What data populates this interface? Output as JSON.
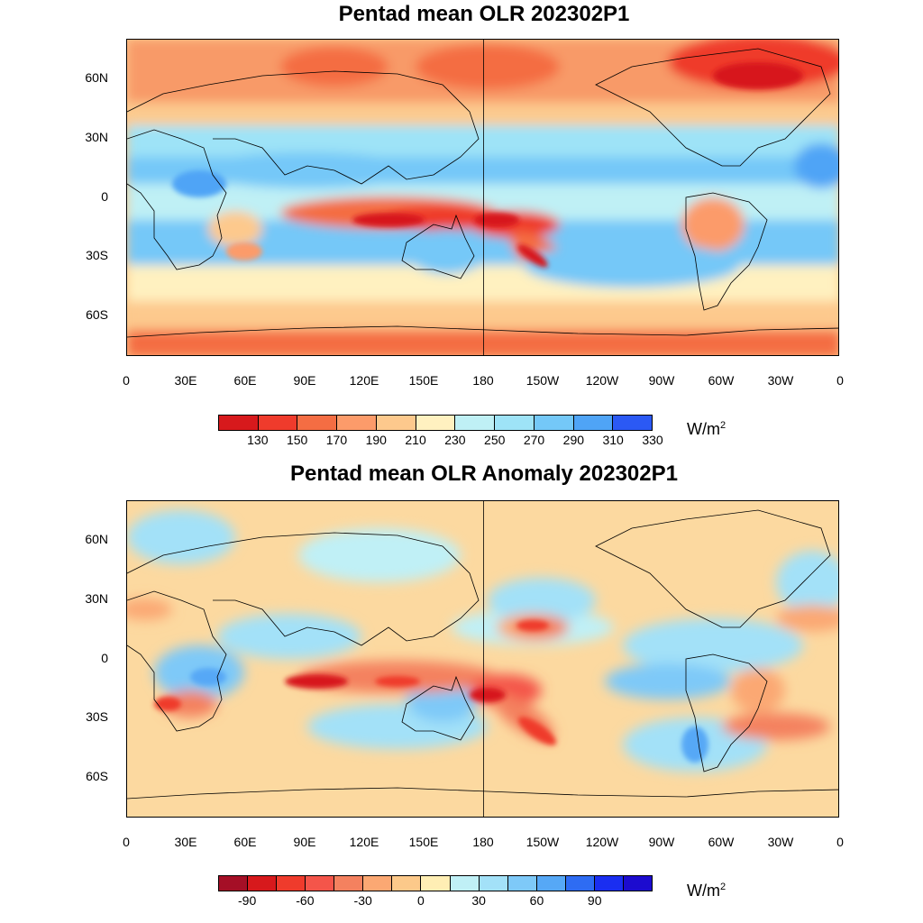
{
  "map_data": {
    "projection": "cylindrical equidistant, 0-360 longitude",
    "lat_range": [
      -80,
      80
    ],
    "lon_range": [
      0,
      360
    ],
    "lat_ticks": [
      "60N",
      "30N",
      "0",
      "30S",
      "60S"
    ],
    "lon_ticks": [
      "0",
      "30E",
      "60E",
      "90E",
      "120E",
      "150E",
      "180",
      "150W",
      "120W",
      "90W",
      "60W",
      "30W",
      "0"
    ]
  },
  "panels": [
    {
      "id": "olr",
      "title": "Pentad mean OLR 202302P1",
      "units_base": "W/m",
      "units_exp": "2",
      "colorbar": {
        "levels": [
          "130",
          "150",
          "170",
          "190",
          "210",
          "230",
          "250",
          "270",
          "290",
          "310",
          "330"
        ],
        "colors": [
          "#d7191c",
          "#ef3b2c",
          "#f46d43",
          "#fc9b6a",
          "#fdc98d",
          "#fff1c0",
          "#bff0f5",
          "#9ee3f7",
          "#74c8f8",
          "#4fa4f6",
          "#2b59f4"
        ]
      }
    },
    {
      "id": "anomaly",
      "title": "Pentad mean OLR Anomaly 202302P1",
      "units_base": "W/m",
      "units_exp": "2",
      "colorbar": {
        "levels": [
          "-90",
          "-60",
          "-30",
          "0",
          "30",
          "60",
          "90"
        ],
        "label_slots": [
          1,
          3,
          5,
          7,
          9,
          11,
          13
        ],
        "colors": [
          "#a50f26",
          "#d7191c",
          "#ef3b2c",
          "#f4554a",
          "#f4815f",
          "#fba873",
          "#fcc98a",
          "#ffeeb4",
          "#c0f0f6",
          "#a3e1f8",
          "#7ec9f8",
          "#56a8f6",
          "#2e6cf3",
          "#1a2ef1",
          "#1c0bcf"
        ]
      }
    }
  ],
  "colors": {
    "ocean_neutral": "#fdd9a0",
    "coast": "#000000"
  }
}
